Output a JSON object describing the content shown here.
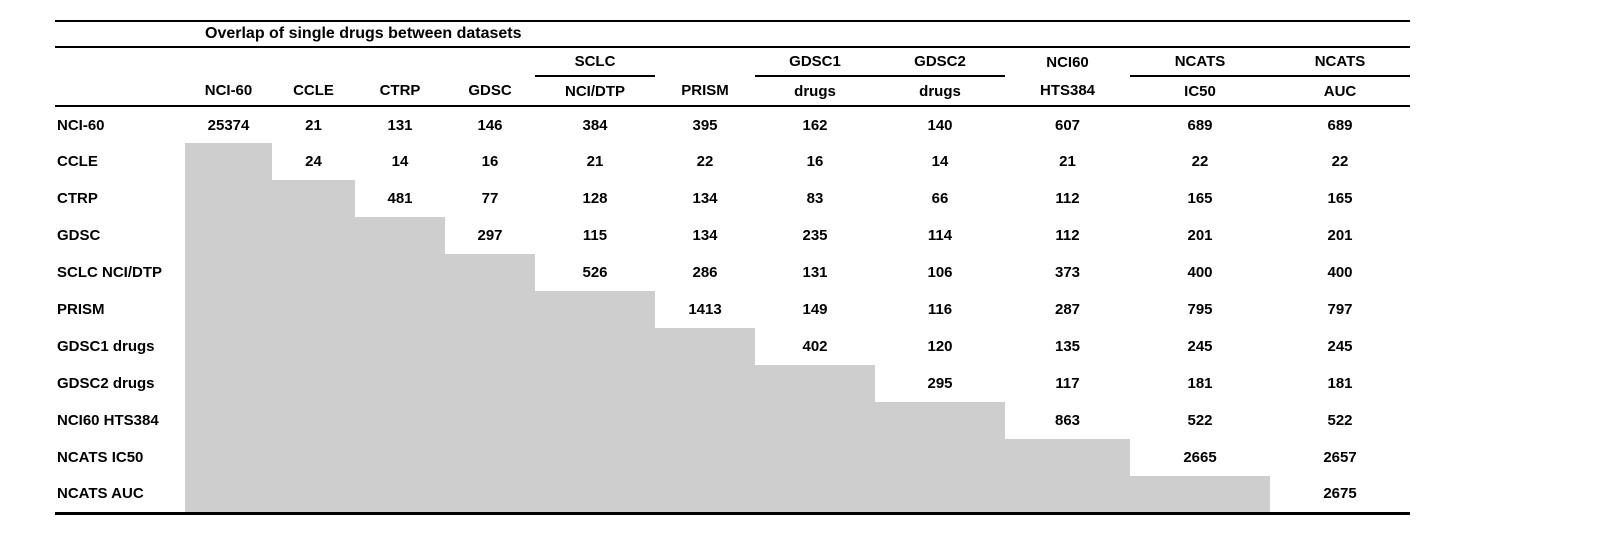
{
  "table": {
    "title": "Overlap of single drugs between datasets",
    "group_headers": [
      "",
      "",
      "",
      "",
      "SCLC",
      "",
      "GDSC1",
      "GDSC2",
      "NCI60",
      "NCATS",
      "NCATS"
    ],
    "sub_headers": [
      "NCI-60",
      "CCLE",
      "CTRP",
      "GDSC",
      "NCI/DTP",
      "PRISM",
      "drugs",
      "drugs",
      "HTS384",
      "IC50",
      "AUC"
    ],
    "rows": [
      {
        "label": "NCI-60",
        "values": [
          25374,
          21,
          131,
          146,
          384,
          395,
          162,
          140,
          607,
          689,
          689
        ]
      },
      {
        "label": "CCLE",
        "values": [
          null,
          24,
          14,
          16,
          21,
          22,
          16,
          14,
          21,
          22,
          22
        ]
      },
      {
        "label": "CTRP",
        "values": [
          null,
          null,
          481,
          77,
          128,
          134,
          83,
          66,
          112,
          165,
          165
        ]
      },
      {
        "label": "GDSC",
        "values": [
          null,
          null,
          null,
          297,
          115,
          134,
          235,
          114,
          112,
          201,
          201
        ]
      },
      {
        "label": "SCLC NCI/DTP",
        "values": [
          null,
          null,
          null,
          null,
          526,
          286,
          131,
          106,
          373,
          400,
          400
        ]
      },
      {
        "label": "PRISM",
        "values": [
          null,
          null,
          null,
          null,
          null,
          1413,
          149,
          116,
          287,
          795,
          797
        ]
      },
      {
        "label": "GDSC1 drugs",
        "values": [
          null,
          null,
          null,
          null,
          null,
          null,
          402,
          120,
          135,
          245,
          245
        ]
      },
      {
        "label": "GDSC2 drugs",
        "values": [
          null,
          null,
          null,
          null,
          null,
          null,
          null,
          295,
          117,
          181,
          181
        ]
      },
      {
        "label": "NCI60 HTS384",
        "values": [
          null,
          null,
          null,
          null,
          null,
          null,
          null,
          null,
          863,
          522,
          522
        ]
      },
      {
        "label": "NCATS IC50",
        "values": [
          null,
          null,
          null,
          null,
          null,
          null,
          null,
          null,
          null,
          2665,
          2657
        ]
      },
      {
        "label": "NCATS AUC",
        "values": [
          null,
          null,
          null,
          null,
          null,
          null,
          null,
          null,
          null,
          null,
          2675
        ]
      }
    ],
    "shaded_color": "#cecece"
  },
  "chart_data": {
    "type": "table",
    "title": "Overlap of single drugs between datasets",
    "columns": [
      "NCI-60",
      "CCLE",
      "CTRP",
      "GDSC",
      "SCLC NCI/DTP",
      "PRISM",
      "GDSC1 drugs",
      "GDSC2 drugs",
      "NCI60 HTS384",
      "NCATS IC50",
      "NCATS AUC"
    ],
    "row_labels": [
      "NCI-60",
      "CCLE",
      "CTRP",
      "GDSC",
      "SCLC NCI/DTP",
      "PRISM",
      "GDSC1 drugs",
      "GDSC2 drugs",
      "NCI60 HTS384",
      "NCATS IC50",
      "NCATS AUC"
    ],
    "matrix": [
      [
        25374,
        21,
        131,
        146,
        384,
        395,
        162,
        140,
        607,
        689,
        689
      ],
      [
        null,
        24,
        14,
        16,
        21,
        22,
        16,
        14,
        21,
        22,
        22
      ],
      [
        null,
        null,
        481,
        77,
        128,
        134,
        83,
        66,
        112,
        165,
        165
      ],
      [
        null,
        null,
        null,
        297,
        115,
        134,
        235,
        114,
        112,
        201,
        201
      ],
      [
        null,
        null,
        null,
        null,
        526,
        286,
        131,
        106,
        373,
        400,
        400
      ],
      [
        null,
        null,
        null,
        null,
        null,
        1413,
        149,
        116,
        287,
        795,
        797
      ],
      [
        null,
        null,
        null,
        null,
        null,
        null,
        402,
        120,
        135,
        245,
        245
      ],
      [
        null,
        null,
        null,
        null,
        null,
        null,
        null,
        295,
        117,
        181,
        181
      ],
      [
        null,
        null,
        null,
        null,
        null,
        null,
        null,
        null,
        863,
        522,
        522
      ],
      [
        null,
        null,
        null,
        null,
        null,
        null,
        null,
        null,
        null,
        2665,
        2657
      ],
      [
        null,
        null,
        null,
        null,
        null,
        null,
        null,
        null,
        null,
        null,
        2675
      ]
    ]
  }
}
